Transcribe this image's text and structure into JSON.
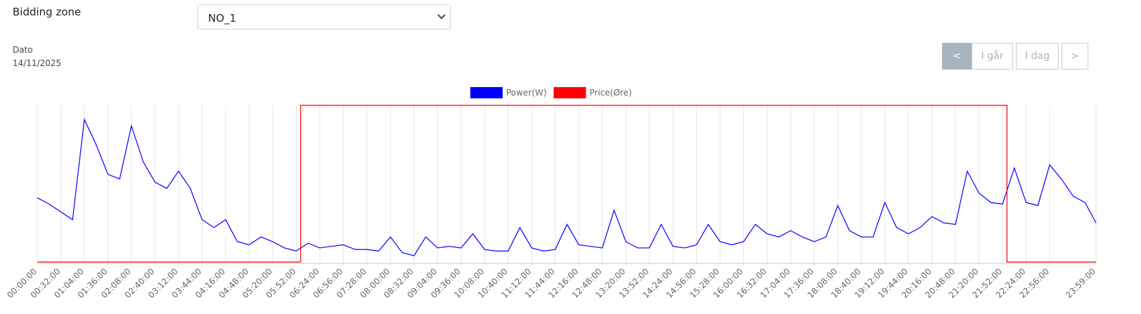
{
  "ui": {
    "zone_label": "Bidding zone",
    "zone_value": "NO_1",
    "date_label": "Dato",
    "date_value": "14/11/2025",
    "buttons": [
      "<",
      "I går",
      "I dag",
      ">"
    ]
  },
  "chart_data": {
    "type": "line",
    "legend": "top",
    "grid": true,
    "xlim": [
      0,
      1439
    ],
    "ylim": [
      0,
      100
    ],
    "y2lim": [
      0,
      100
    ],
    "xticks": [
      {
        "value": 0,
        "label": "00:00:00"
      },
      {
        "value": 32,
        "label": "00:32:00"
      },
      {
        "value": 64,
        "label": "01:04:00"
      },
      {
        "value": 96,
        "label": "01:36:00"
      },
      {
        "value": 128,
        "label": "02:08:00"
      },
      {
        "value": 160,
        "label": "02:40:00"
      },
      {
        "value": 192,
        "label": "03:12:00"
      },
      {
        "value": 224,
        "label": "03:44:00"
      },
      {
        "value": 256,
        "label": "04:16:00"
      },
      {
        "value": 288,
        "label": "04:48:00"
      },
      {
        "value": 320,
        "label": "05:20:00"
      },
      {
        "value": 352,
        "label": "05:52:00"
      },
      {
        "value": 384,
        "label": "06:24:00"
      },
      {
        "value": 416,
        "label": "06:56:00"
      },
      {
        "value": 448,
        "label": "07:28:00"
      },
      {
        "value": 480,
        "label": "08:00:00"
      },
      {
        "value": 512,
        "label": "08:32:00"
      },
      {
        "value": 544,
        "label": "09:04:00"
      },
      {
        "value": 576,
        "label": "09:36:00"
      },
      {
        "value": 608,
        "label": "10:08:00"
      },
      {
        "value": 640,
        "label": "10:40:00"
      },
      {
        "value": 672,
        "label": "11:12:00"
      },
      {
        "value": 704,
        "label": "11:44:00"
      },
      {
        "value": 736,
        "label": "12:16:00"
      },
      {
        "value": 768,
        "label": "12:48:00"
      },
      {
        "value": 800,
        "label": "13:20:00"
      },
      {
        "value": 832,
        "label": "13:52:00"
      },
      {
        "value": 864,
        "label": "14:24:00"
      },
      {
        "value": 896,
        "label": "14:56:00"
      },
      {
        "value": 928,
        "label": "15:28:00"
      },
      {
        "value": 960,
        "label": "16:00:00"
      },
      {
        "value": 992,
        "label": "16:32:00"
      },
      {
        "value": 1024,
        "label": "17:04:00"
      },
      {
        "value": 1056,
        "label": "17:36:00"
      },
      {
        "value": 1088,
        "label": "18:08:00"
      },
      {
        "value": 1120,
        "label": "18:40:00"
      },
      {
        "value": 1152,
        "label": "19:12:00"
      },
      {
        "value": 1184,
        "label": "19:44:00"
      },
      {
        "value": 1216,
        "label": "20:16:00"
      },
      {
        "value": 1248,
        "label": "20:48:00"
      },
      {
        "value": 1280,
        "label": "21:20:00"
      },
      {
        "value": 1312,
        "label": "21:52:00"
      },
      {
        "value": 1344,
        "label": "22:24:00"
      },
      {
        "value": 1376,
        "label": "22:56:00"
      },
      {
        "value": 1439,
        "label": "23:59:00"
      }
    ],
    "series": [
      {
        "name": "Power(W)",
        "color": "#0000ff",
        "x": [
          0,
          16,
          32,
          48,
          64,
          80,
          96,
          112,
          128,
          144,
          160,
          176,
          192,
          208,
          224,
          240,
          256,
          272,
          288,
          304,
          320,
          336,
          352,
          368,
          384,
          400,
          416,
          432,
          448,
          464,
          480,
          496,
          512,
          528,
          544,
          560,
          576,
          592,
          608,
          624,
          640,
          656,
          672,
          688,
          704,
          720,
          736,
          752,
          768,
          784,
          800,
          816,
          832,
          848,
          864,
          880,
          896,
          912,
          928,
          944,
          960,
          976,
          992,
          1008,
          1024,
          1040,
          1056,
          1072,
          1088,
          1104,
          1120,
          1136,
          1152,
          1168,
          1184,
          1200,
          1216,
          1232,
          1248,
          1264,
          1280,
          1296,
          1312,
          1328,
          1344,
          1360,
          1376,
          1392,
          1408,
          1424,
          1439
        ],
        "values": [
          41,
          37,
          32,
          27,
          91,
          75,
          56,
          53,
          87,
          64,
          51,
          47,
          58,
          47,
          27,
          22,
          27,
          13,
          11,
          16,
          13,
          9,
          7,
          12,
          9,
          10,
          11,
          8,
          8,
          7,
          16,
          6,
          4,
          16,
          9,
          10,
          9,
          18,
          8,
          7,
          7,
          22,
          9,
          7,
          8,
          24,
          11,
          10,
          9,
          33,
          13,
          9,
          9,
          24,
          10,
          9,
          11,
          24,
          13,
          11,
          13,
          24,
          18,
          16,
          20,
          16,
          13,
          16,
          36,
          20,
          16,
          16,
          38,
          22,
          18,
          22,
          29,
          25,
          24,
          58,
          44,
          38,
          37,
          60,
          38,
          36,
          62,
          53,
          42,
          38,
          25
        ]
      },
      {
        "name": "Price(Øre)",
        "color": "#ff0000",
        "axis": "y2",
        "x": [
          0,
          358,
          358,
          1318,
          1318,
          1439
        ],
        "values": [
          0,
          0,
          100,
          100,
          0,
          0
        ]
      }
    ]
  }
}
